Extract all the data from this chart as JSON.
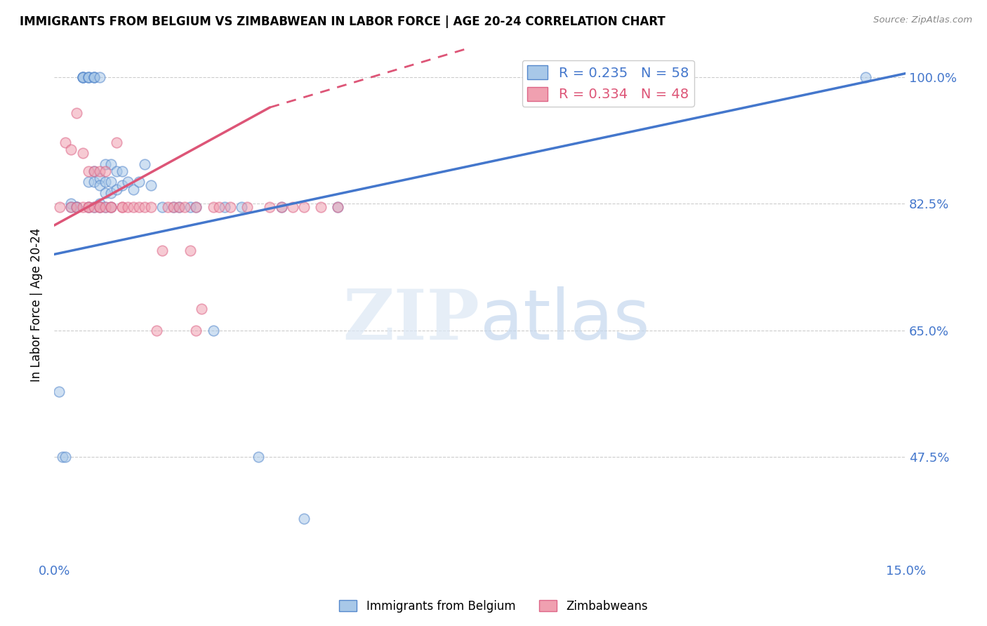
{
  "title": "IMMIGRANTS FROM BELGIUM VS ZIMBABWEAN IN LABOR FORCE | AGE 20-24 CORRELATION CHART",
  "source": "Source: ZipAtlas.com",
  "ylabel": "In Labor Force | Age 20-24",
  "xlim": [
    0.0,
    0.15
  ],
  "ylim": [
    0.33,
    1.04
  ],
  "xtick_positions": [
    0.0,
    0.025,
    0.05,
    0.075,
    0.1,
    0.125,
    0.15
  ],
  "xticklabels": [
    "0.0%",
    "",
    "",
    "",
    "",
    "",
    "15.0%"
  ],
  "ytick_positions": [
    0.475,
    0.65,
    0.825,
    1.0
  ],
  "yticklabels": [
    "47.5%",
    "65.0%",
    "82.5%",
    "100.0%"
  ],
  "blue_R": 0.235,
  "blue_N": 58,
  "pink_R": 0.334,
  "pink_N": 48,
  "blue_fill": "#a8c8e8",
  "pink_fill": "#f0a0b0",
  "blue_edge": "#5588cc",
  "pink_edge": "#dd6688",
  "blue_line_color": "#4477cc",
  "pink_line_color": "#dd5577",
  "legend_label_blue": "Immigrants from Belgium",
  "legend_label_pink": "Zimbabweans",
  "blue_line": [
    0.0,
    0.15,
    0.755,
    1.005
  ],
  "pink_line_solid": [
    0.0,
    0.038,
    0.795,
    0.958
  ],
  "pink_line_dash": [
    0.038,
    0.15,
    0.958,
    1.22
  ],
  "blue_scatter_x": [
    0.0008,
    0.0015,
    0.002,
    0.003,
    0.003,
    0.004,
    0.004,
    0.004,
    0.005,
    0.005,
    0.005,
    0.005,
    0.006,
    0.006,
    0.006,
    0.006,
    0.006,
    0.007,
    0.007,
    0.007,
    0.007,
    0.007,
    0.007,
    0.008,
    0.008,
    0.008,
    0.008,
    0.008,
    0.009,
    0.009,
    0.009,
    0.009,
    0.01,
    0.01,
    0.01,
    0.01,
    0.011,
    0.011,
    0.012,
    0.012,
    0.013,
    0.014,
    0.015,
    0.016,
    0.017,
    0.019,
    0.021,
    0.022,
    0.024,
    0.025,
    0.028,
    0.03,
    0.033,
    0.036,
    0.04,
    0.044,
    0.05,
    0.143
  ],
  "blue_scatter_y": [
    0.565,
    0.475,
    0.475,
    0.825,
    0.82,
    0.82,
    0.82,
    0.82,
    1.0,
    1.0,
    1.0,
    1.0,
    1.0,
    1.0,
    1.0,
    0.855,
    0.82,
    1.0,
    1.0,
    1.0,
    0.87,
    0.855,
    0.82,
    1.0,
    0.86,
    0.85,
    0.825,
    0.82,
    0.88,
    0.855,
    0.84,
    0.82,
    0.88,
    0.855,
    0.84,
    0.82,
    0.87,
    0.845,
    0.87,
    0.85,
    0.855,
    0.845,
    0.855,
    0.88,
    0.85,
    0.82,
    0.82,
    0.82,
    0.82,
    0.82,
    0.65,
    0.82,
    0.82,
    0.475,
    0.82,
    0.39,
    0.82,
    1.0
  ],
  "pink_scatter_x": [
    0.001,
    0.002,
    0.003,
    0.003,
    0.004,
    0.004,
    0.005,
    0.005,
    0.006,
    0.006,
    0.006,
    0.007,
    0.007,
    0.008,
    0.008,
    0.008,
    0.009,
    0.009,
    0.01,
    0.01,
    0.011,
    0.012,
    0.012,
    0.013,
    0.014,
    0.015,
    0.016,
    0.017,
    0.018,
    0.019,
    0.02,
    0.021,
    0.022,
    0.023,
    0.024,
    0.025,
    0.025,
    0.026,
    0.028,
    0.029,
    0.031,
    0.034,
    0.038,
    0.04,
    0.042,
    0.044,
    0.047,
    0.05
  ],
  "pink_scatter_y": [
    0.82,
    0.91,
    0.9,
    0.82,
    0.95,
    0.82,
    0.895,
    0.82,
    0.87,
    0.82,
    0.82,
    0.87,
    0.82,
    0.87,
    0.82,
    0.82,
    0.87,
    0.82,
    0.82,
    0.82,
    0.91,
    0.82,
    0.82,
    0.82,
    0.82,
    0.82,
    0.82,
    0.82,
    0.65,
    0.76,
    0.82,
    0.82,
    0.82,
    0.82,
    0.76,
    0.82,
    0.65,
    0.68,
    0.82,
    0.82,
    0.82,
    0.82,
    0.82,
    0.82,
    0.82,
    0.82,
    0.82,
    0.82
  ]
}
